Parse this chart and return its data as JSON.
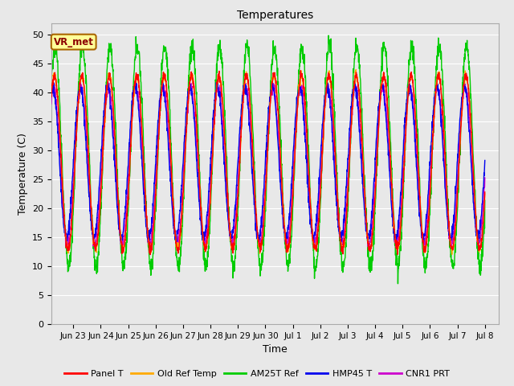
{
  "title": "Temperatures",
  "xlabel": "Time",
  "ylabel": "Temperature (C)",
  "ylim": [
    0,
    52
  ],
  "yticks": [
    0,
    5,
    10,
    15,
    20,
    25,
    30,
    35,
    40,
    45,
    50
  ],
  "legend_labels": [
    "Panel T",
    "Old Ref Temp",
    "AM25T Ref",
    "HMP45 T",
    "CNR1 PRT"
  ],
  "legend_colors": [
    "#ff0000",
    "#ffaa00",
    "#00cc00",
    "#0000ee",
    "#cc00cc"
  ],
  "annotation_text": "VR_met",
  "bg_color": "#e8e8e8",
  "plot_bg_color": "#e8e8e8",
  "grid_color": "#ffffff",
  "x_tick_labels": [
    "Jun 23",
    "Jun 24",
    "Jun 25",
    "Jun 26",
    "Jun 27",
    "Jun 28",
    "Jun 29",
    "Jun 30",
    "Jul 1",
    "Jul 2",
    "Jul 3",
    "Jul 4",
    "Jul 5",
    "Jul 6",
    "Jul 7",
    "Jul 8"
  ],
  "line_width": 1.0
}
